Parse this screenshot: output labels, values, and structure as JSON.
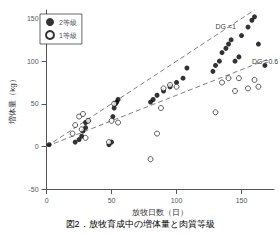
{
  "chart_data": {
    "type": "scatter",
    "title": "図2．放牧育成中の増体量と肉質等級",
    "x_label": "放牧日数（日）",
    "y_label": "増体量（kg）",
    "xlim": [
      0,
      175
    ],
    "ylim": [
      -50,
      160
    ],
    "xticks": [
      0,
      50,
      100,
      150
    ],
    "yticks": [
      -50,
      0,
      50,
      100,
      150
    ],
    "grid": false,
    "legend": "upper left",
    "series": [
      {
        "type": "line",
        "line_style": "dashed",
        "color": "gray",
        "x": [
          0,
          160
        ],
        "values": [
          0,
          160
        ]
      },
      {
        "type": "line",
        "line_style": "dashed",
        "color": "gray",
        "x": [
          0,
          170
        ],
        "values": [
          0,
          102
        ]
      },
      {
        "type": "scatter",
        "name": "2等級",
        "marker": "circle",
        "color": "black",
        "x": [
          2,
          22,
          25,
          27,
          28,
          30,
          30,
          32,
          48,
          50,
          51,
          52,
          53,
          54,
          55,
          80,
          82,
          85,
          90,
          95,
          100,
          105,
          108,
          128,
          130,
          133,
          135,
          138,
          140,
          142,
          145,
          148,
          150,
          155,
          158,
          160,
          163,
          168
        ],
        "values": [
          2,
          5,
          8,
          12,
          18,
          22,
          28,
          30,
          2,
          5,
          35,
          45,
          50,
          52,
          55,
          52,
          55,
          60,
          65,
          70,
          75,
          80,
          92,
          88,
          95,
          100,
          110,
          115,
          120,
          125,
          100,
          105,
          130,
          140,
          148,
          152,
          120,
          95
        ]
      },
      {
        "type": "scatter",
        "name": "1等級",
        "marker": "open_circle",
        "color": "black",
        "x": [
          20,
          22,
          25,
          27,
          28,
          30,
          32,
          48,
          50,
          52,
          55,
          80,
          85,
          88,
          90,
          95,
          100,
          130,
          135,
          140,
          145,
          148,
          155,
          160,
          163
        ],
        "values": [
          15,
          25,
          35,
          20,
          38,
          10,
          30,
          5,
          30,
          50,
          28,
          -15,
          15,
          45,
          68,
          72,
          70,
          40,
          75,
          80,
          65,
          80,
          68,
          78,
          70
        ]
      }
    ],
    "annotations": [
      {
        "text": "DG =1",
        "x": 130,
        "y": 137
      },
      {
        "text": "DG =0.6",
        "x": 158,
        "y": 100
      }
    ]
  }
}
